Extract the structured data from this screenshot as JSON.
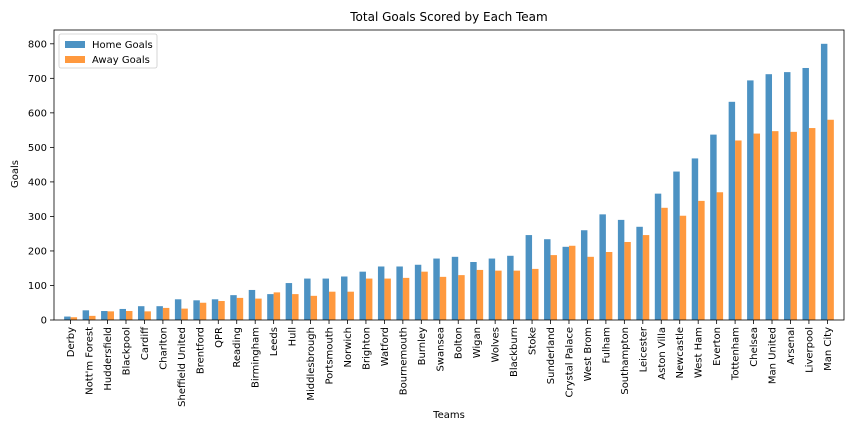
{
  "chart_data": {
    "type": "bar",
    "title": "Total Goals Scored by Each Team",
    "xlabel": "Teams",
    "ylabel": "Goals",
    "ylim": [
      0,
      840
    ],
    "yticks": [
      0,
      100,
      200,
      300,
      400,
      500,
      600,
      700,
      800
    ],
    "grid": false,
    "legend_position": "top-left",
    "categories": [
      "Derby",
      "Nott'm Forest",
      "Huddersfield",
      "Blackpool",
      "Cardiff",
      "Charlton",
      "Sheffield United",
      "Brentford",
      "QPR",
      "Reading",
      "Birmingham",
      "Leeds",
      "Hull",
      "Middlesbrough",
      "Portsmouth",
      "Norwich",
      "Brighton",
      "Watford",
      "Bournemouth",
      "Burnley",
      "Swansea",
      "Bolton",
      "Wigan",
      "Wolves",
      "Blackburn",
      "Stoke",
      "Sunderland",
      "Crystal Palace",
      "West Brom",
      "Fulham",
      "Southampton",
      "Leicester",
      "Aston Villa",
      "Newcastle",
      "West Ham",
      "Everton",
      "Tottenham",
      "Chelsea",
      "Man United",
      "Arsenal",
      "Liverpool",
      "Man City"
    ],
    "series": [
      {
        "name": "Home Goals",
        "color": "#1f77b4",
        "values": [
          10,
          28,
          26,
          32,
          40,
          40,
          60,
          57,
          60,
          72,
          87,
          75,
          107,
          120,
          120,
          126,
          140,
          155,
          155,
          160,
          178,
          183,
          168,
          178,
          186,
          246,
          234,
          212,
          260,
          306,
          290,
          270,
          366,
          430,
          468,
          537,
          632,
          694,
          712,
          718,
          730,
          800
        ]
      },
      {
        "name": "Away Goals",
        "color": "#ff7f0e",
        "values": [
          8,
          12,
          25,
          26,
          25,
          35,
          33,
          50,
          55,
          64,
          62,
          80,
          75,
          70,
          82,
          82,
          120,
          120,
          122,
          140,
          125,
          130,
          145,
          143,
          143,
          148,
          188,
          215,
          183,
          197,
          226,
          246,
          325,
          302,
          345,
          370,
          520,
          540,
          547,
          545,
          556,
          580
        ]
      }
    ]
  }
}
